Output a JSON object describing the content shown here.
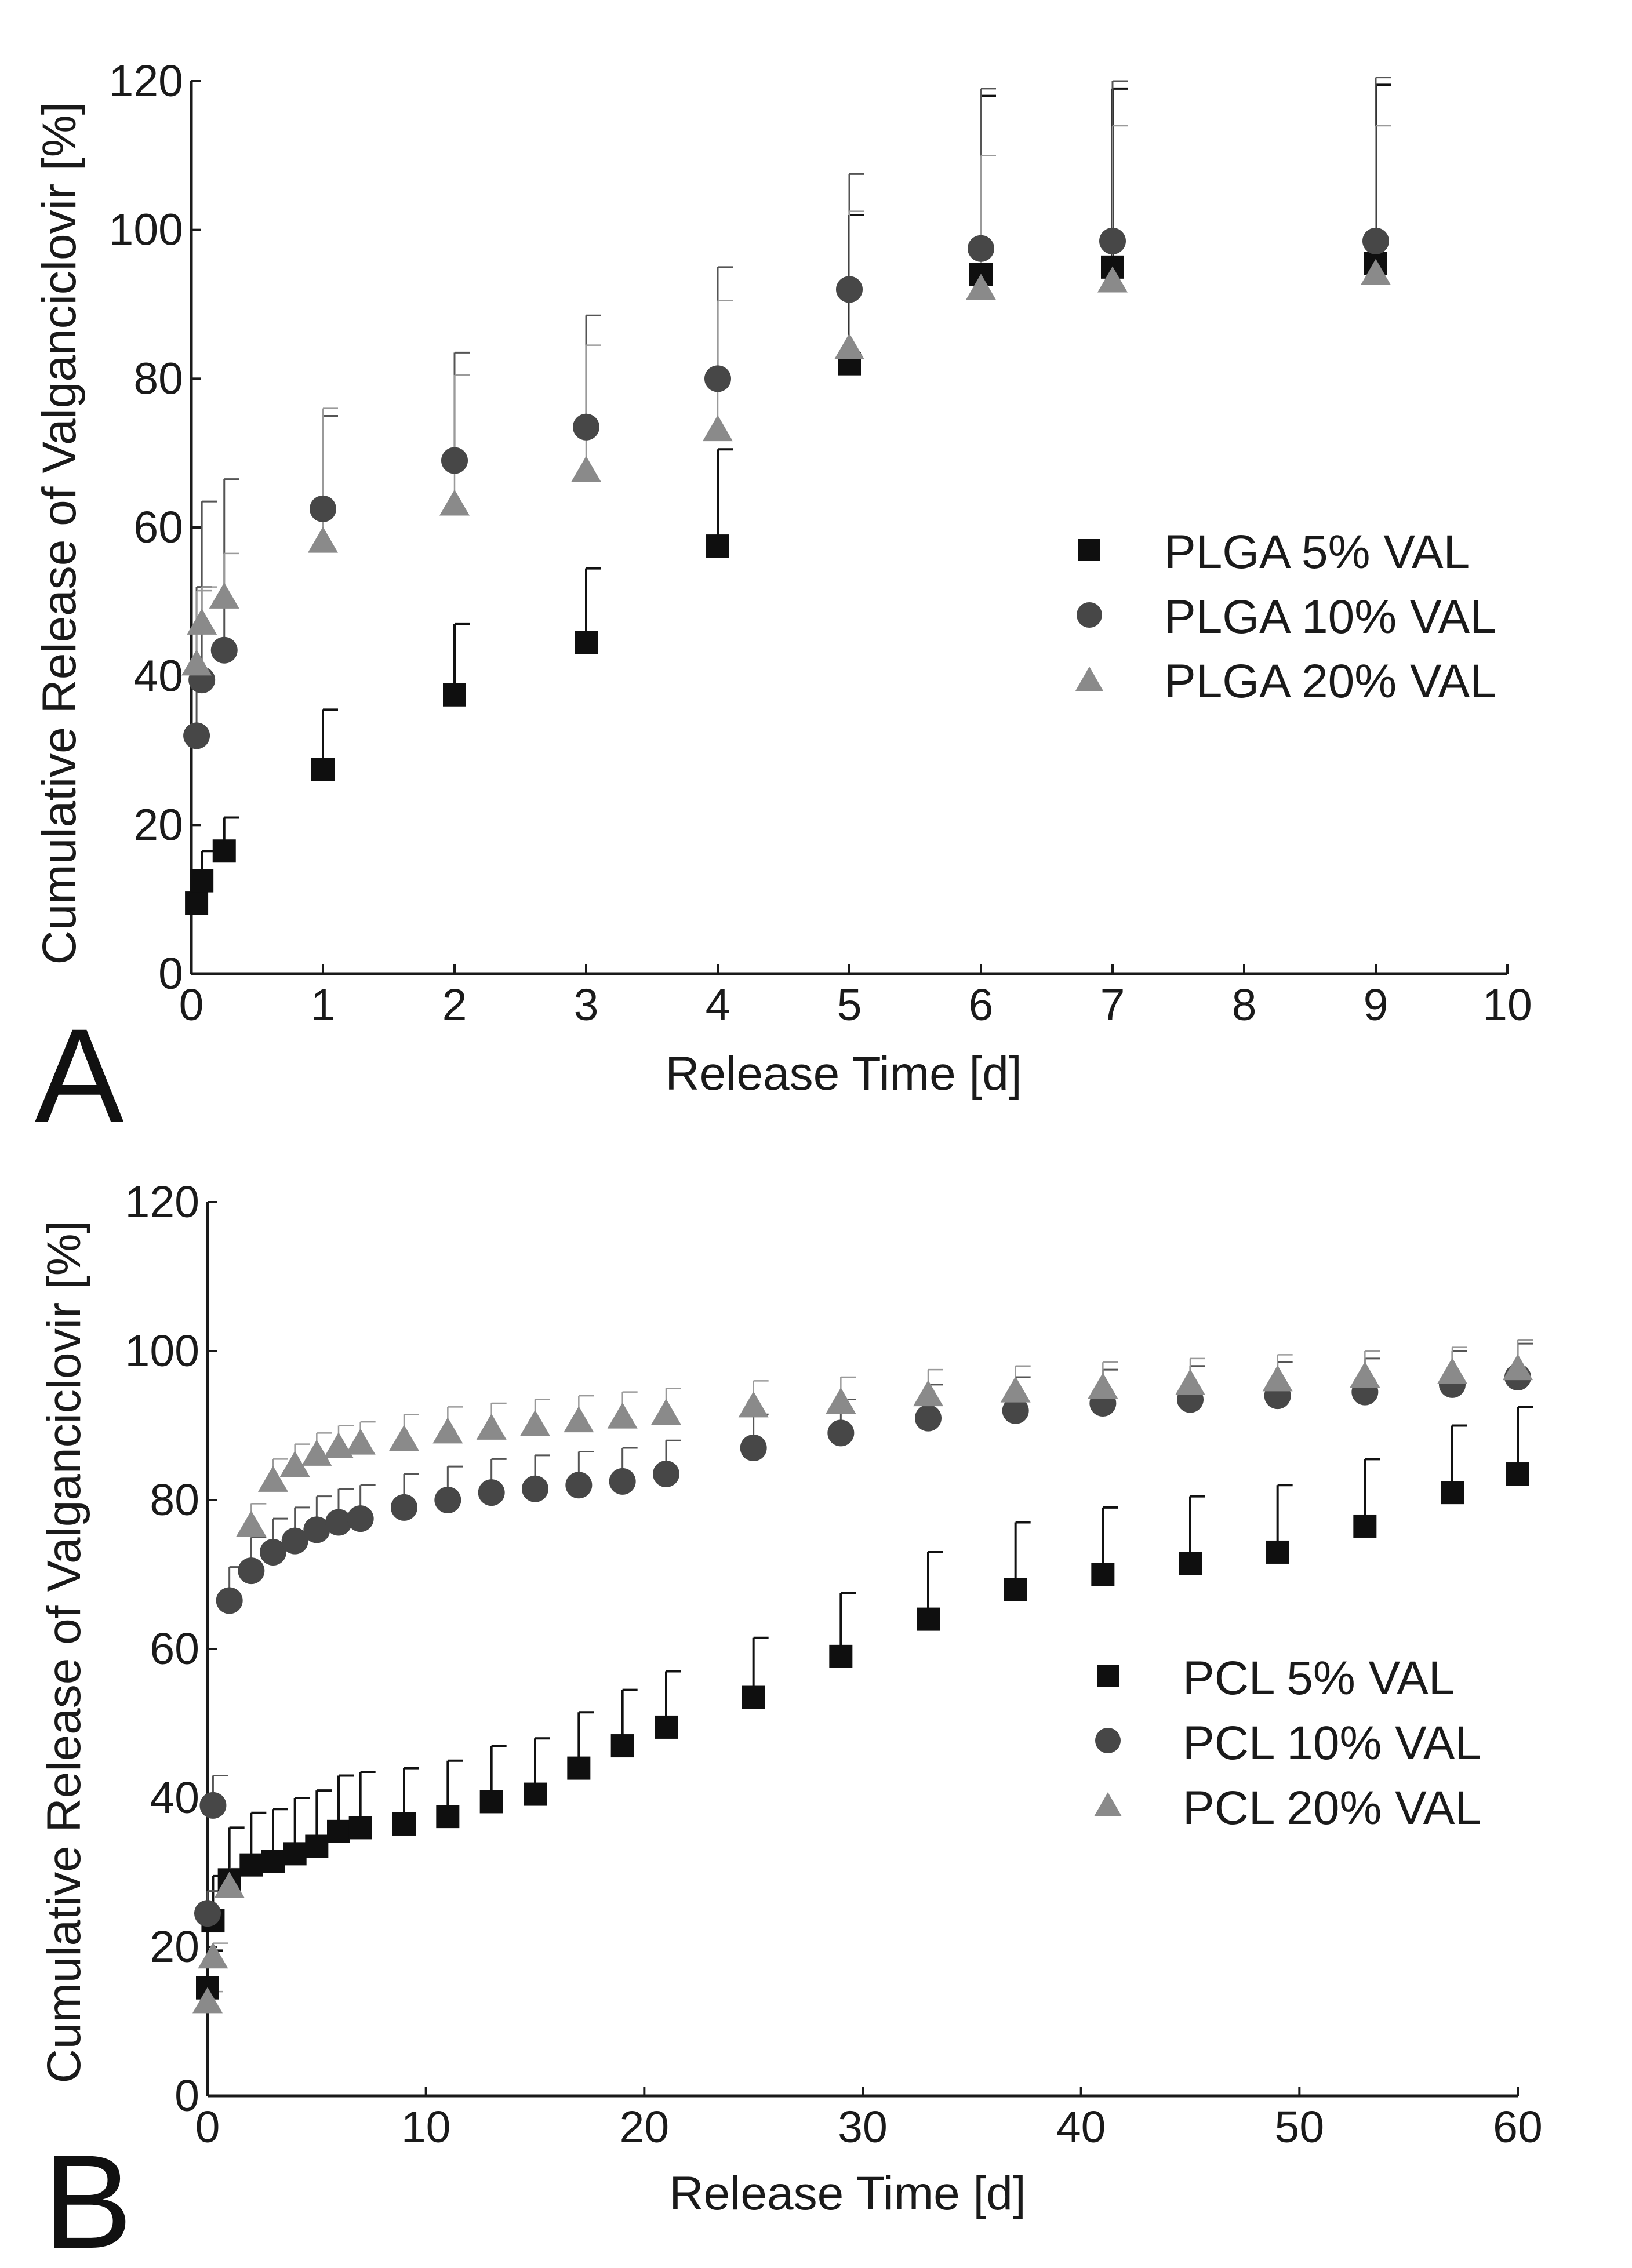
{
  "colors": {
    "axis": "#1a1a1a",
    "square": "#0f0f0f",
    "circle": "#474747",
    "triangle": "#8a8a8a",
    "square_err": "#111111",
    "circle_err": "#555555",
    "triangle_err": "#9a9a9a"
  },
  "chart_data": [
    {
      "type": "scatter",
      "panel_label": "A",
      "xlabel": "Release Time [d]",
      "ylabel": "Cumulative Release of Valganciclovir [%]",
      "xlim": [
        0,
        10
      ],
      "ylim": [
        0,
        120
      ],
      "xticks": [
        0,
        1,
        2,
        3,
        4,
        5,
        6,
        7,
        8,
        9,
        10
      ],
      "yticks": [
        0,
        20,
        40,
        60,
        80,
        100,
        120
      ],
      "grid": false,
      "legend_position": "right-middle",
      "series": [
        {
          "name": "PLGA 5% VAL",
          "marker": "square",
          "x": [
            0.04,
            0.08,
            0.25,
            1,
            2,
            3,
            4,
            5,
            6,
            7,
            9
          ],
          "y": [
            9.5,
            12.5,
            16.5,
            27.5,
            37.5,
            44.5,
            57.5,
            82,
            94,
            95,
            95.5
          ],
          "err": [
            2,
            4,
            4.5,
            8,
            9.5,
            10,
            13,
            20,
            24,
            24,
            24
          ]
        },
        {
          "name": "PLGA 10% VAL",
          "marker": "circle",
          "x": [
            0.04,
            0.08,
            0.25,
            1,
            2,
            3,
            4,
            5,
            6,
            7,
            9
          ],
          "y": [
            32,
            39.5,
            43.5,
            62.5,
            69,
            73.5,
            80,
            92,
            97.5,
            98.5,
            98.5
          ],
          "err": [
            20,
            24,
            23,
            12.5,
            14.5,
            15,
            15,
            15.5,
            21.5,
            21.5,
            22
          ]
        },
        {
          "name": "PLGA 20% VAL",
          "marker": "triangle",
          "x": [
            0.04,
            0.08,
            0.25,
            1,
            2,
            3,
            4,
            5,
            6,
            7,
            9
          ],
          "y": [
            41.5,
            47,
            50.5,
            58,
            63,
            67.5,
            73,
            84,
            92,
            93,
            94
          ],
          "err": [
            10,
            5,
            6,
            18,
            17.5,
            17,
            17.5,
            18.5,
            18,
            21,
            20
          ]
        }
      ]
    },
    {
      "type": "scatter",
      "panel_label": "B",
      "xlabel": "Release Time [d]",
      "ylabel": "Cumulative Release of Valganciclovir [%]",
      "xlim": [
        0,
        60
      ],
      "ylim": [
        0,
        120
      ],
      "xticks": [
        0,
        10,
        20,
        30,
        40,
        50,
        60
      ],
      "yticks": [
        0,
        20,
        40,
        60,
        80,
        100,
        120
      ],
      "grid": false,
      "legend_position": "right-middle",
      "series": [
        {
          "name": "PCL 5% VAL",
          "marker": "square",
          "x": [
            0,
            0.25,
            1,
            2,
            3,
            4,
            5,
            6,
            7,
            9,
            11,
            13,
            15,
            17,
            19,
            21,
            25,
            29,
            33,
            37,
            41,
            45,
            49,
            53,
            57,
            60
          ],
          "y": [
            14.5,
            23.5,
            29,
            31,
            31.5,
            32.5,
            33.5,
            35.5,
            36,
            36.5,
            37.5,
            39.5,
            40.5,
            44,
            47,
            49.5,
            53.5,
            59,
            64,
            68,
            70,
            71.5,
            73,
            76.5,
            81,
            83.5
          ],
          "err": [
            5,
            6,
            7,
            7,
            7,
            7.5,
            7.5,
            7.5,
            7.5,
            7.5,
            7.5,
            7.5,
            7.5,
            7.5,
            7.5,
            7.5,
            8,
            8.5,
            9,
            9,
            9,
            9,
            9,
            9,
            9,
            9
          ]
        },
        {
          "name": "PCL 10% VAL",
          "marker": "circle",
          "x": [
            0,
            0.25,
            1,
            2,
            3,
            4,
            5,
            6,
            7,
            9,
            11,
            13,
            15,
            17,
            19,
            21,
            25,
            29,
            33,
            37,
            41,
            45,
            49,
            53,
            57,
            60
          ],
          "y": [
            24.5,
            39,
            66.5,
            70.5,
            73,
            74.5,
            76,
            77,
            77.5,
            79,
            80,
            81,
            81.5,
            82,
            82.5,
            83.5,
            87,
            89,
            91,
            92,
            93,
            93.5,
            94,
            94.5,
            95.5,
            96.5
          ],
          "err": [
            3,
            4,
            4.5,
            4.5,
            4.5,
            4.5,
            4.5,
            4.5,
            4.5,
            4.5,
            4.5,
            4.5,
            4.5,
            4.5,
            4.5,
            4.5,
            4.5,
            4.5,
            4.5,
            4.5,
            4.5,
            4.5,
            4.5,
            4.5,
            4.5,
            4.5
          ]
        },
        {
          "name": "PCL 20% VAL",
          "marker": "triangle",
          "x": [
            0,
            0.25,
            1,
            2,
            3,
            4,
            5,
            6,
            7,
            9,
            11,
            13,
            15,
            17,
            19,
            21,
            25,
            29,
            33,
            37,
            41,
            45,
            49,
            53,
            57,
            60
          ],
          "y": [
            12.5,
            18.5,
            28,
            76.5,
            82.5,
            84.5,
            86,
            87,
            87.5,
            88,
            89,
            89.5,
            90,
            90.5,
            91,
            91.5,
            92.5,
            93,
            94,
            94.5,
            95,
            95.5,
            96,
            96.5,
            97,
            97.5
          ],
          "err": [
            1.5,
            2,
            2.5,
            3,
            3,
            3,
            3,
            3,
            3,
            3.5,
            3.5,
            3.5,
            3.5,
            3.5,
            3.5,
            3.5,
            3.5,
            3.5,
            3.5,
            3.5,
            3.5,
            3.5,
            3.5,
            3.5,
            3.5,
            4
          ]
        }
      ]
    }
  ]
}
